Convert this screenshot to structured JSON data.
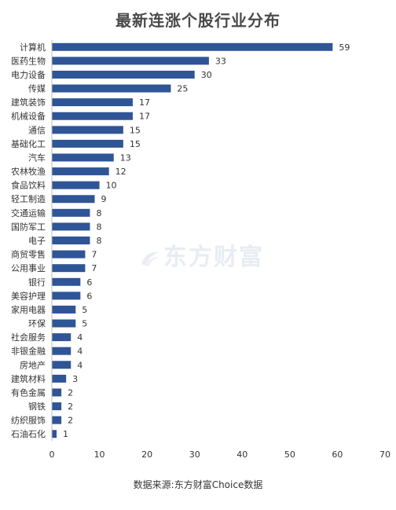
{
  "title": "最新连涨个股行业分布",
  "watermark": "东方财富",
  "source": "数据来源:东方财富Choice数据",
  "colors": {
    "bar": "#2f5597",
    "text": "#333333",
    "axis": "#bfbfbf"
  },
  "chart_data": {
    "type": "bar",
    "orientation": "horizontal",
    "title": "最新连涨个股行业分布",
    "xlabel": "",
    "ylabel": "",
    "xlim": [
      0,
      70
    ],
    "xticks": [
      0,
      10,
      20,
      30,
      40,
      50,
      60,
      70
    ],
    "grid": false,
    "legend": "none",
    "categories": [
      "计算机",
      "医药生物",
      "电力设备",
      "传媒",
      "建筑装饰",
      "机械设备",
      "通信",
      "基础化工",
      "汽车",
      "农林牧渔",
      "食品饮料",
      "轻工制造",
      "交通运输",
      "国防军工",
      "电子",
      "商贸零售",
      "公用事业",
      "银行",
      "美容护理",
      "家用电器",
      "环保",
      "社会服务",
      "非银金融",
      "房地产",
      "建筑材料",
      "有色金属",
      "钢铁",
      "纺织服饰",
      "石油石化"
    ],
    "values": [
      59,
      33,
      30,
      25,
      17,
      17,
      15,
      15,
      13,
      12,
      10,
      9,
      8,
      8,
      8,
      7,
      7,
      6,
      6,
      5,
      5,
      4,
      4,
      4,
      3,
      2,
      2,
      2,
      1
    ]
  }
}
